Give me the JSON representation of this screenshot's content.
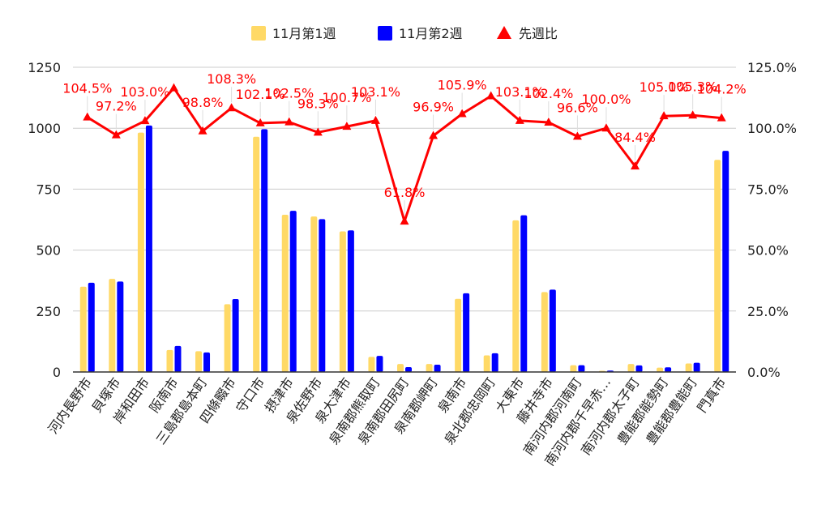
{
  "chart_data": {
    "type": "bar",
    "categories": [
      "河内長野市",
      "貝塚市",
      "岸和田市",
      "阪南市",
      "三島郡島本町",
      "四條畷市",
      "守口市",
      "摂津市",
      "泉佐野市",
      "泉大津市",
      "泉南郡熊取町",
      "泉南郡田尻町",
      "泉南郡岬町",
      "泉南市",
      "泉北郡忠岡町",
      "大東市",
      "藤井寺市",
      "南河内郡河南町",
      "南河内郡千早赤…",
      "南河内郡太子町",
      "豊能郡能勢町",
      "豊能郡豊能町",
      "門真市"
    ],
    "series": [
      {
        "name": "11月第1週",
        "type": "bar",
        "axis": "left",
        "color": "#ffd966",
        "values": [
          350,
          382,
          982,
          90,
          85,
          278,
          965,
          645,
          638,
          577,
          62,
          33,
          33,
          300,
          68,
          622,
          328,
          28,
          5,
          33,
          18,
          35,
          870
        ]
      },
      {
        "name": "11月第2週",
        "type": "bar",
        "axis": "left",
        "color": "#0000ff",
        "values": [
          366,
          371,
          1011,
          107,
          80,
          299,
          996,
          661,
          627,
          581,
          66,
          20,
          30,
          323,
          77,
          643,
          338,
          28,
          6,
          27,
          19,
          38,
          907
        ]
      },
      {
        "name": "先週比",
        "type": "line",
        "axis": "right",
        "color": "#ff0000",
        "values": [
          104.5,
          97.2,
          103.0,
          116.5,
          98.8,
          108.3,
          102.1,
          102.5,
          98.3,
          100.7,
          103.1,
          61.8,
          96.9,
          105.9,
          113.2,
          103.1,
          102.4,
          96.6,
          100.0,
          84.4,
          105.0,
          105.3,
          104.2
        ],
        "labels": [
          "104.5%",
          "97.2%",
          "103.0%",
          "",
          "98.8%",
          "108.3%",
          "102.1%",
          "102.5%",
          "98.3%",
          "100.7%",
          "103.1%",
          "61.8%",
          "96.9%",
          "105.9%",
          "",
          "103.1%",
          "102.4%",
          "96.6%",
          "100.0%",
          "84.4%",
          "105.0%",
          "105.3%",
          "104.2%"
        ]
      }
    ],
    "left_axis": {
      "ticks": [
        "0",
        "250",
        "500",
        "750",
        "1000",
        "1250"
      ],
      "min": 0,
      "max": 1250
    },
    "right_axis": {
      "ticks": [
        "0.0%",
        "25.0%",
        "50.0%",
        "75.0%",
        "100.0%",
        "125.0%"
      ],
      "min": 0,
      "max": 125
    },
    "grid": true,
    "legend_position": "top-center",
    "title": "",
    "xlabel": "",
    "ylabel": ""
  }
}
